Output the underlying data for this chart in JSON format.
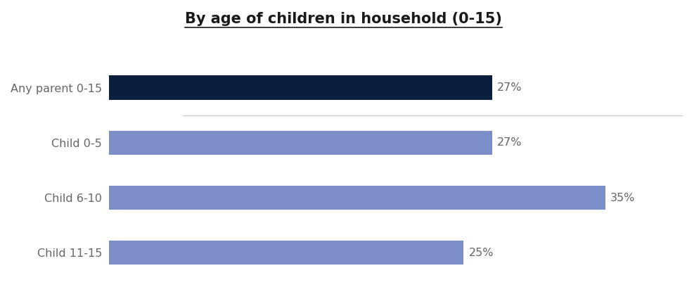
{
  "title": "By age of children in household (0-15)",
  "categories": [
    "Any parent 0-15",
    "Child 0-5",
    "Child 6-10",
    "Child 11-15"
  ],
  "values": [
    27,
    27,
    35,
    25
  ],
  "bar_colors": [
    "#0a1f3c",
    "#7b8ec8",
    "#7b8ec8",
    "#7b8ec8"
  ],
  "label_color": "#666666",
  "value_color": "#666666",
  "background_color": "#ffffff",
  "title_fontsize": 15,
  "label_fontsize": 11.5,
  "value_fontsize": 11.5,
  "xlim": [
    0,
    40
  ],
  "figsize": [
    9.77,
    4.25
  ],
  "dpi": 100,
  "separator_color": "#cccccc"
}
